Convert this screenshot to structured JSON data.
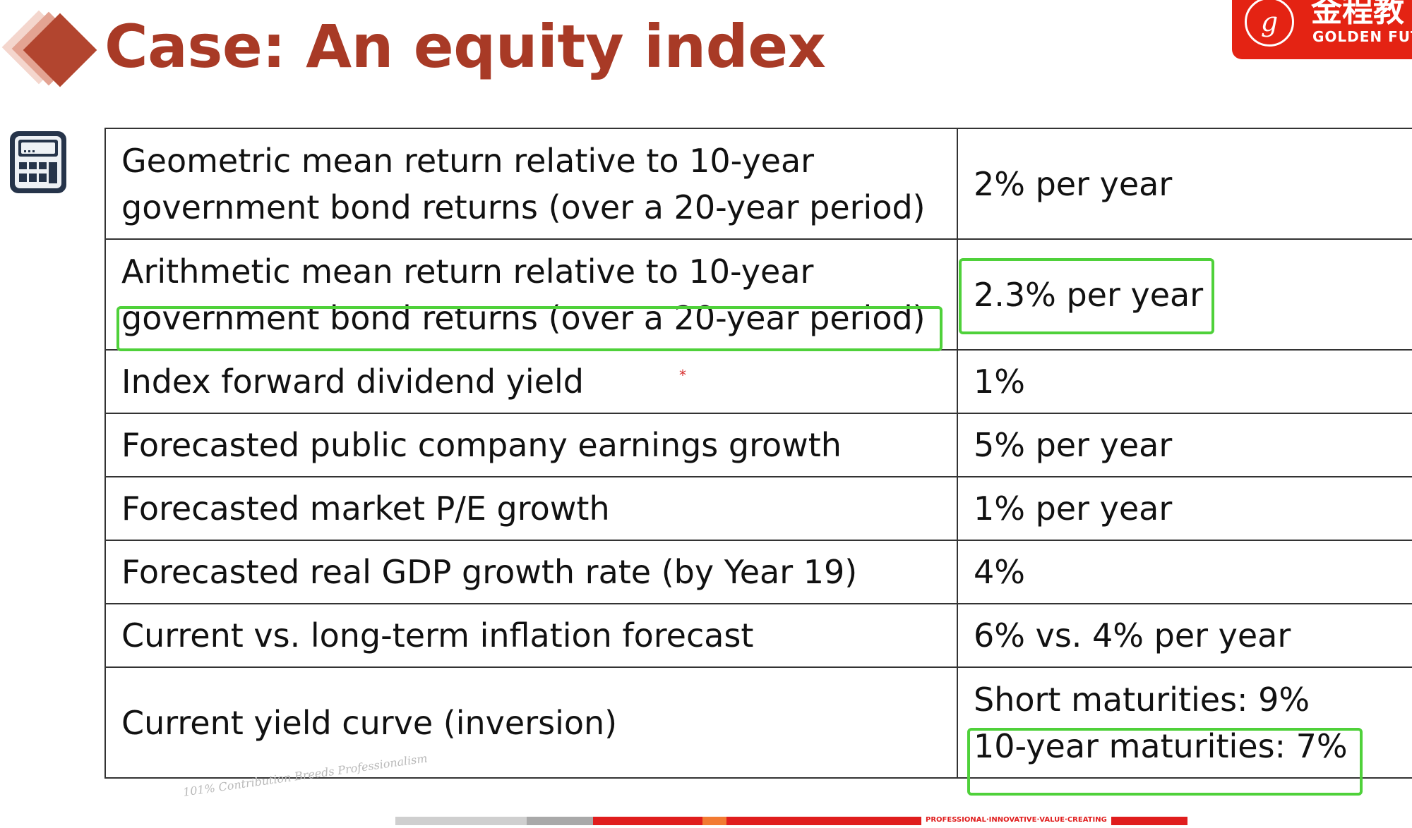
{
  "header": {
    "title": "Case: An equity index",
    "logo": {
      "seal_text": "g",
      "cn_text": "金程教",
      "en_text": "GOLDEN FUT"
    }
  },
  "table": {
    "rows": [
      {
        "label_lines": [
          "Geometric mean return relative to 10-year",
          "government bond returns (over a 20-year period)"
        ],
        "value_lines": [
          "2% per year"
        ]
      },
      {
        "label_lines": [
          "Arithmetic mean return relative to 10-year",
          "government bond returns (over a 20-year period)"
        ],
        "value_lines": [
          "2.3% per year"
        ]
      },
      {
        "label_lines": [
          "Index forward dividend yield"
        ],
        "value_lines": [
          "1%"
        ]
      },
      {
        "label_lines": [
          "Forecasted public company earnings growth"
        ],
        "value_lines": [
          "5% per year"
        ]
      },
      {
        "label_lines": [
          "Forecasted market P/E growth"
        ],
        "value_lines": [
          "1% per year"
        ]
      },
      {
        "label_lines": [
          "Forecasted real GDP growth rate (by Year 19)"
        ],
        "value_lines": [
          "4%"
        ]
      },
      {
        "label_lines": [
          "Current vs. long-term inflation forecast"
        ],
        "value_lines": [
          "6% vs. 4% per year"
        ]
      },
      {
        "label_lines": [
          "Current yield curve (inversion)"
        ],
        "value_lines": [
          "Short maturities: 9%",
          "10-year maturities: 7%"
        ]
      }
    ]
  },
  "annotations": {
    "highlight_color": "#4fd13a",
    "stray_mark": "*"
  },
  "footer": {
    "motto": "101% Contribution Breeds Professionalism",
    "slogan": "PROFESSIONAL·INNOVATIVE·VALUE·CREATING"
  },
  "colors": {
    "title": "#a83a26",
    "logo_bg": "#e42313",
    "accent_red": "#e01d1d"
  },
  "icons": [
    "diamond-icon",
    "calculator-icon"
  ]
}
